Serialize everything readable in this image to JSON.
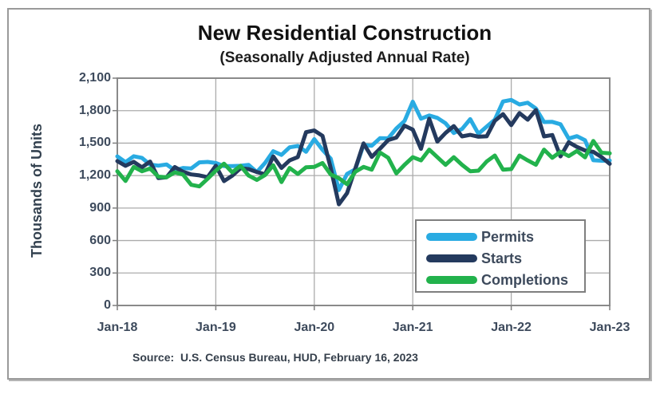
{
  "chart_data": {
    "type": "line",
    "title": "New Residential Construction",
    "subtitle": "(Seasonally Adjusted Annual Rate)",
    "xlabel": "",
    "ylabel": "Thousands of Units",
    "source_note": "Source:  U.S. Census Bureau, HUD, February 16, 2023",
    "ylim": [
      0,
      2100
    ],
    "y_ticks": [
      0,
      300,
      600,
      900,
      1200,
      1500,
      1800,
      2100
    ],
    "y_tick_labels": [
      "0",
      "300",
      "600",
      "900",
      "1,200",
      "1,500",
      "1,800",
      "2,100"
    ],
    "x_tick_labels": [
      "Jan-18",
      "Jan-19",
      "Jan-20",
      "Jan-21",
      "Jan-22",
      "Jan-23"
    ],
    "x_unit": "month",
    "grid": true,
    "legend_position": "inside-lower-right",
    "colors": {
      "grid": "#ababab",
      "plot_border": "#8a8a8a",
      "tick": "#7f7f7f"
    },
    "series": [
      {
        "name": "Permits",
        "color": "#29ABE2",
        "values": [
          1377,
          1324,
          1379,
          1364,
          1301,
          1292,
          1303,
          1249,
          1270,
          1265,
          1322,
          1326,
          1316,
          1287,
          1288,
          1290,
          1299,
          1232,
          1317,
          1425,
          1391,
          1461,
          1474,
          1420,
          1536,
          1438,
          1356,
          1066,
          1216,
          1258,
          1483,
          1476,
          1545,
          1544,
          1635,
          1704,
          1883,
          1726,
          1755,
          1733,
          1683,
          1594,
          1630,
          1721,
          1586,
          1653,
          1717,
          1885,
          1899,
          1857,
          1873,
          1819,
          1695,
          1696,
          1674,
          1542,
          1564,
          1526,
          1342,
          1337,
          1339
        ]
      },
      {
        "name": "Starts",
        "color": "#243A5E",
        "values": [
          1334,
          1290,
          1327,
          1276,
          1329,
          1177,
          1184,
          1279,
          1236,
          1211,
          1202,
          1185,
          1291,
          1149,
          1199,
          1267,
          1260,
          1233,
          1212,
          1377,
          1270,
          1340,
          1371,
          1601,
          1617,
          1567,
          1269,
          934,
          1038,
          1265,
          1497,
          1373,
          1448,
          1528,
          1551,
          1661,
          1625,
          1447,
          1725,
          1514,
          1594,
          1657,
          1562,
          1576,
          1559,
          1563,
          1706,
          1768,
          1666,
          1777,
          1716,
          1805,
          1562,
          1575,
          1377,
          1508,
          1465,
          1432,
          1419,
          1371,
          1309
        ]
      },
      {
        "name": "Completions",
        "color": "#22B24C",
        "values": [
          1240,
          1150,
          1280,
          1240,
          1265,
          1190,
          1185,
          1230,
          1210,
          1115,
          1100,
          1170,
          1245,
          1310,
          1230,
          1290,
          1200,
          1160,
          1205,
          1295,
          1140,
          1270,
          1215,
          1277,
          1280,
          1316,
          1210,
          1176,
          1120,
          1235,
          1280,
          1255,
          1413,
          1365,
          1220,
          1300,
          1370,
          1340,
          1440,
          1370,
          1300,
          1370,
          1300,
          1240,
          1245,
          1330,
          1385,
          1255,
          1260,
          1385,
          1340,
          1300,
          1440,
          1365,
          1420,
          1380,
          1427,
          1368,
          1520,
          1411,
          1406
        ]
      }
    ]
  }
}
